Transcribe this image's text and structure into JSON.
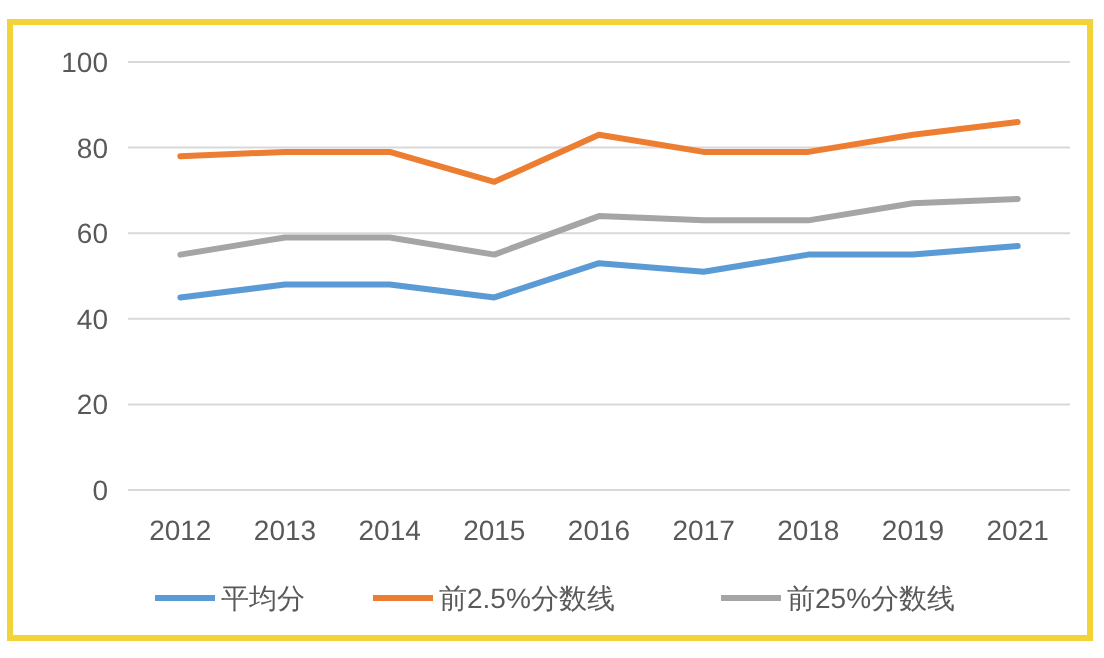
{
  "chart_data": {
    "type": "line",
    "categories": [
      "2012",
      "2013",
      "2014",
      "2015",
      "2016",
      "2017",
      "2018",
      "2019",
      "2021"
    ],
    "series": [
      {
        "name": "平均分",
        "color": "#5b9bd5",
        "values": [
          45,
          48,
          48,
          45,
          53,
          51,
          55,
          55,
          57
        ]
      },
      {
        "name": "前2.5%分数线",
        "color": "#ed7d31",
        "values": [
          78,
          79,
          79,
          72,
          83,
          79,
          79,
          83,
          86
        ]
      },
      {
        "name": "前25%分数线",
        "color": "#a5a5a5",
        "values": [
          55,
          59,
          59,
          55,
          64,
          63,
          63,
          67,
          68
        ]
      }
    ],
    "ylim": [
      0,
      100
    ],
    "yticks": [
      0,
      20,
      40,
      60,
      80,
      100
    ],
    "grid": "y",
    "legend": "bottom"
  }
}
